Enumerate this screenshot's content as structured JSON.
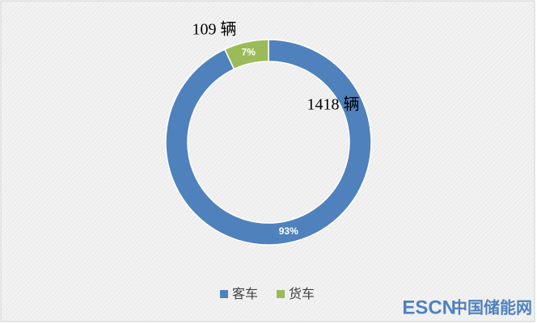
{
  "chart_data": {
    "type": "donut",
    "categories": [
      "客车",
      "货车"
    ],
    "values": [
      93,
      7
    ],
    "value_labels": [
      "93%",
      "7%"
    ],
    "colors": [
      "#4f81bd",
      "#9bbb59"
    ],
    "annotations": [
      "1418 辆",
      "109 辆"
    ],
    "legend": "bottom"
  },
  "watermark": {
    "brand": "ESCN",
    "name": "中国储能网"
  }
}
